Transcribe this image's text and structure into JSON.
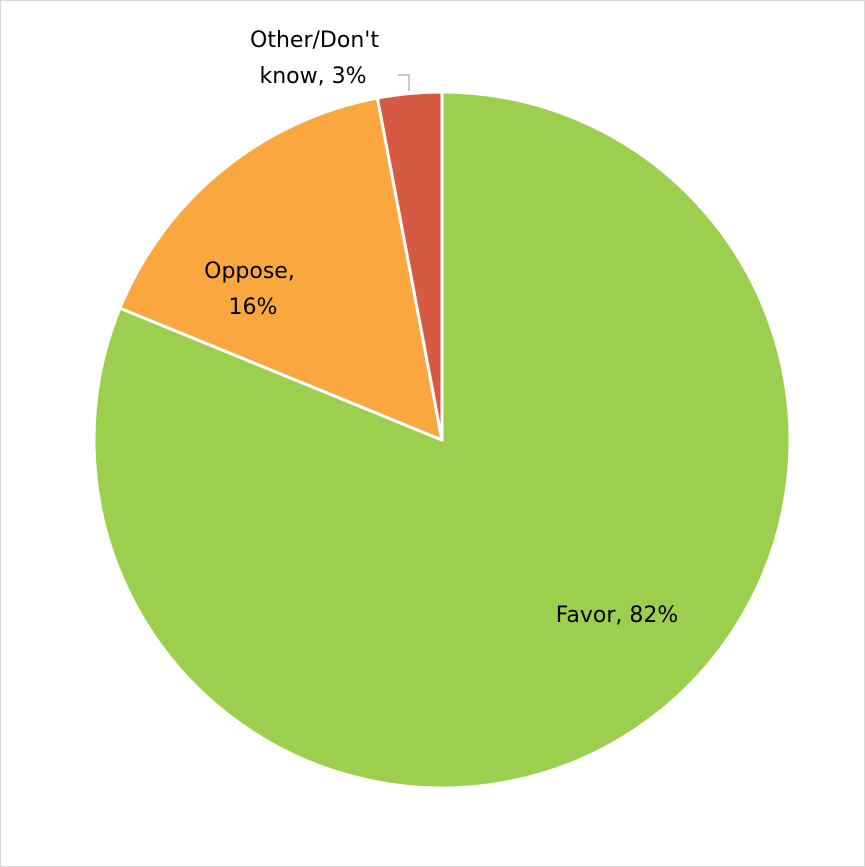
{
  "chart_data": {
    "type": "pie",
    "slices": [
      {
        "label": "Favor",
        "value": 82,
        "display": "Favor, 82%",
        "color": "#9ccf4e"
      },
      {
        "label": "Oppose",
        "value": 16,
        "display_lines": [
          "Oppose,",
          "16%"
        ],
        "color": "#f9a73e"
      },
      {
        "label": "Other/Don't know",
        "value": 3,
        "display_lines": [
          "Other/Don't",
          "know, 3%"
        ],
        "color": "#d65a42"
      }
    ],
    "start_angle": "12 o'clock",
    "direction": "clockwise",
    "legend": "none"
  }
}
